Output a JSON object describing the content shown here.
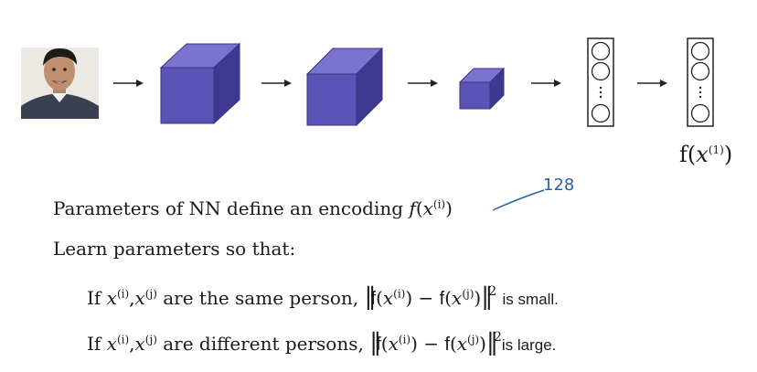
{
  "diagram": {
    "encoding_label": {
      "fn": "f",
      "var": "x",
      "sup": "(1)"
    },
    "annotation": "128"
  },
  "text": {
    "line1": {
      "pre": "Parameters of NN define an encoding",
      "fn": "f",
      "var": "x",
      "sup": "(i)"
    },
    "line2": "Learn parameters so that:",
    "line3": {
      "pre": "If",
      "xi": "x",
      "xi_sup": "(i)",
      "comma": ",",
      "xj": "x",
      "xj_sup": "(j)",
      "mid": "are the same person,",
      "tail": "is small."
    },
    "line4": {
      "pre": "If",
      "xi": "x",
      "xi_sup": "(i)",
      "comma": ",",
      "xj": "x",
      "xj_sup": "(j)",
      "mid": "are different persons,",
      "tail": "is large."
    },
    "norm_expr": {
      "f1": "f",
      "x1": "x",
      "s1": "(i)",
      "minus": "−",
      "f2": "f",
      "x2": "x",
      "s2": "(j)",
      "sq": "2"
    }
  },
  "colors": {
    "cube_front": "#5b53b6",
    "cube_top": "#7a73d0",
    "cube_side": "#3f3890",
    "annotation": "#2d5fa8"
  },
  "icons": {
    "photo": "person-photo-icon",
    "arrow": "arrow-right-icon",
    "neuron": "neuron-circle-icon"
  }
}
